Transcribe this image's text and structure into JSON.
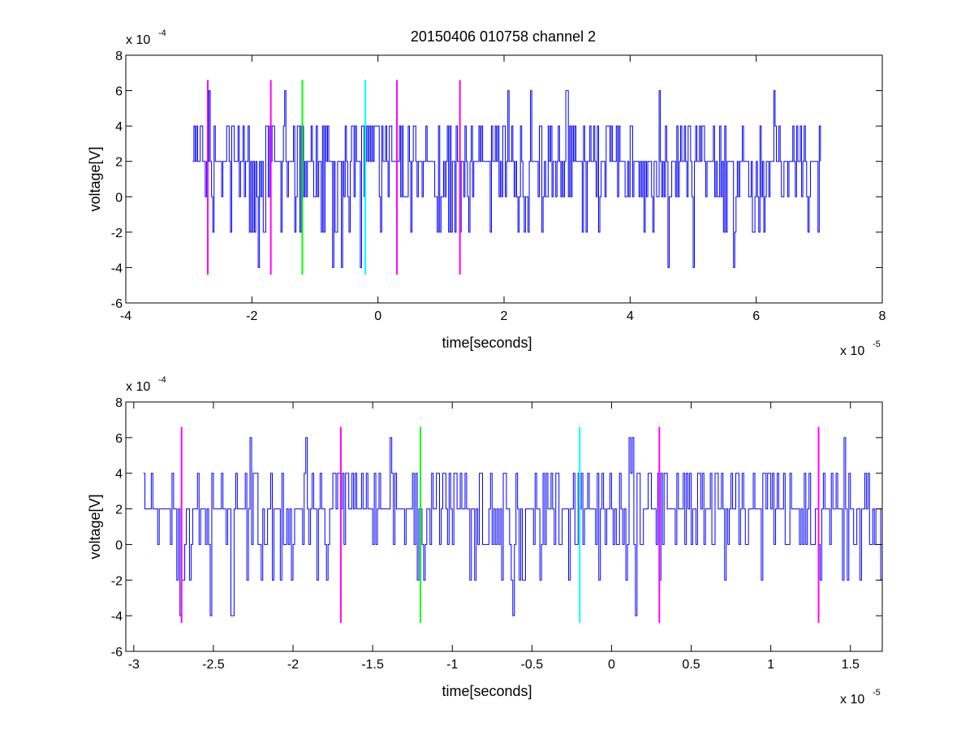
{
  "title": "20150406 010758 channel 2",
  "chart_data": [
    {
      "type": "line",
      "xlabel": "time[seconds]",
      "ylabel": "voltage[V]",
      "x_exponent_label": "x 10",
      "x_exponent": "-5",
      "y_exponent_label": "x 10",
      "y_exponent": "-4",
      "xlim": [
        -4e-05,
        8e-05
      ],
      "ylim": [
        -0.0006,
        0.0008
      ],
      "xticks": [
        -4e-05,
        -2e-05,
        0,
        2e-05,
        4e-05,
        6e-05,
        8e-05
      ],
      "xtick_labels": [
        "-4",
        "-2",
        "0",
        "2",
        "4",
        "6",
        "8"
      ],
      "yticks": [
        -0.0006,
        -0.0004,
        -0.0002,
        0,
        0.0002,
        0.0004,
        0.0006,
        0.0008
      ],
      "ytick_labels": [
        "-6",
        "-4",
        "-2",
        "0",
        "2",
        "4",
        "6",
        "8"
      ],
      "signal": {
        "color": "#0000ff",
        "x_start": -2.94e-05,
        "x_end": 7.02e-05,
        "step": 2e-07
      },
      "markers": [
        {
          "x": -2.7e-05,
          "color": "#ff00ff",
          "y_range": [
            -0.00044,
            0.00066
          ]
        },
        {
          "x": -1.7e-05,
          "color": "#ff00ff",
          "y_range": [
            -0.00044,
            0.00066
          ]
        },
        {
          "x": -1.2e-05,
          "color": "#00ff00",
          "y_range": [
            -0.00044,
            0.00066
          ]
        },
        {
          "x": -2e-06,
          "color": "#00ffff",
          "y_range": [
            -0.00044,
            0.00066
          ]
        },
        {
          "x": 3e-06,
          "color": "#ff00ff",
          "y_range": [
            -0.00044,
            0.00066
          ]
        },
        {
          "x": 1.3e-05,
          "color": "#ff00ff",
          "y_range": [
            -0.00044,
            0.00066
          ]
        }
      ]
    },
    {
      "type": "line",
      "xlabel": "time[seconds]",
      "ylabel": "voltage[V]",
      "x_exponent_label": "x 10",
      "x_exponent": "-5",
      "y_exponent_label": "x 10",
      "y_exponent": "-4",
      "xlim": [
        -3.05e-05,
        1.7e-05
      ],
      "ylim": [
        -0.0006,
        0.0008
      ],
      "xticks": [
        -3e-05,
        -2.5e-05,
        -2e-05,
        -1.5e-05,
        -1e-05,
        -5e-06,
        0,
        5e-06,
        1e-05,
        1.5e-05
      ],
      "xtick_labels": [
        "-3",
        "-2.5",
        "-2",
        "-1.5",
        "-1",
        "-0.5",
        "0",
        "0.5",
        "1",
        "1.5"
      ],
      "yticks": [
        -0.0006,
        -0.0004,
        -0.0002,
        0,
        0.0002,
        0.0004,
        0.0006,
        0.0008
      ],
      "ytick_labels": [
        "-6",
        "-4",
        "-2",
        "0",
        "2",
        "4",
        "6",
        "8"
      ],
      "signal": {
        "color": "#0000ff",
        "x_start": -2.94e-05,
        "x_end": 1.7e-05,
        "step": 1e-07
      },
      "markers": [
        {
          "x": -2.7e-05,
          "color": "#ff00ff",
          "y_range": [
            -0.00044,
            0.00066
          ]
        },
        {
          "x": -1.7e-05,
          "color": "#ff00ff",
          "y_range": [
            -0.00044,
            0.00066
          ]
        },
        {
          "x": -1.2e-05,
          "color": "#00ff00",
          "y_range": [
            -0.00044,
            0.00066
          ]
        },
        {
          "x": -2e-06,
          "color": "#00ffff",
          "y_range": [
            -0.00044,
            0.00066
          ]
        },
        {
          "x": 3e-06,
          "color": "#ff00ff",
          "y_range": [
            -0.00044,
            0.00066
          ]
        },
        {
          "x": 1.3e-05,
          "color": "#ff00ff",
          "y_range": [
            -0.00044,
            0.00066
          ]
        }
      ]
    }
  ]
}
